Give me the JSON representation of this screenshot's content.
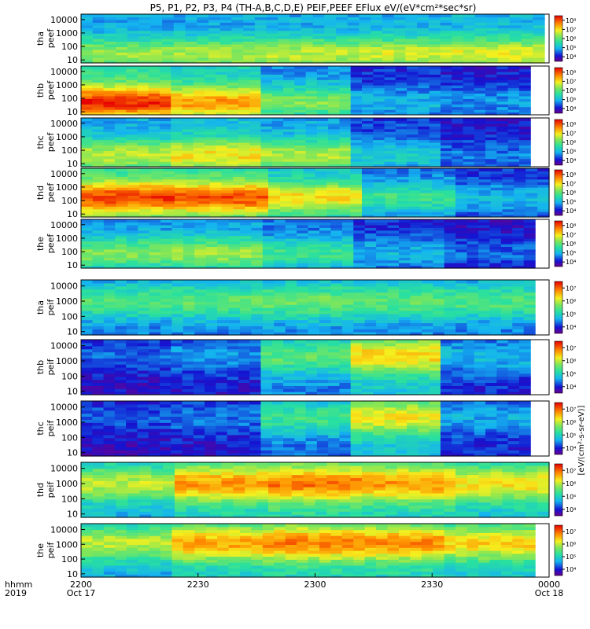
{
  "chart_data": {
    "type": "heatmap",
    "title": "P5, P1, P2, P3, P4 (TH-A,B,C,D,E) PEIF,PEEF EFlux eV/(eV*cm²*sec*sr)",
    "x_ticks": [
      "2200",
      "2230",
      "2300",
      "2330",
      "0000"
    ],
    "x_dates": [
      "Oct 17",
      "Oct 18"
    ],
    "x_axis_label": "hhmm",
    "x_year": "2019",
    "y_ticks": [
      "10",
      "100",
      "1000",
      "10000"
    ],
    "y_scale": "log",
    "ylim": [
      6,
      25000
    ],
    "colorbar_ticks_eflux": [
      "10⁴",
      "10⁵",
      "10⁶",
      "10⁷",
      "10⁸"
    ],
    "colorbar_label": "[eV/(cm²-s-sr-eV)]",
    "panels": [
      {
        "probe": "tha",
        "product": "peef",
        "label_top": "tha",
        "label_bottom": "peef",
        "colorbar_ticks": [
          "10⁴",
          "10⁵",
          "10⁶",
          "10⁷",
          "10⁸"
        ],
        "data_end_fraction": 0.99,
        "base": [
          0.58,
          0.6,
          0.62,
          0.64,
          0.66
        ],
        "peak_energy_level": 0.7
      },
      {
        "probe": "thb",
        "product": "peef",
        "label_top": "thb",
        "label_bottom": "peef",
        "colorbar_ticks": [
          "10⁴",
          "10⁵",
          "10⁶",
          "10⁷",
          "10⁸"
        ],
        "data_end_fraction": 0.96,
        "base": [
          0.95,
          0.8,
          0.55,
          0.3,
          0.25
        ],
        "peak_energy_level": 1.0
      },
      {
        "probe": "thc",
        "product": "peef",
        "label_top": "thc",
        "label_bottom": "peef",
        "colorbar_ticks": [
          "10⁴",
          "10⁵",
          "10⁶",
          "10⁷",
          "10⁸"
        ],
        "data_end_fraction": 0.96,
        "base": [
          0.62,
          0.7,
          0.6,
          0.35,
          0.22
        ],
        "peak_energy_level": 0.9
      },
      {
        "probe": "thd",
        "product": "peef",
        "label_top": "thd",
        "label_bottom": "peef",
        "colorbar_ticks": [
          "10⁴",
          "10⁵",
          "10⁶",
          "10⁷",
          "10⁸"
        ],
        "data_end_fraction": 1.0,
        "base": [
          0.92,
          0.9,
          0.7,
          0.45,
          0.3
        ],
        "peak_energy_level": 1.6
      },
      {
        "probe": "the",
        "product": "peef",
        "label_top": "the",
        "label_bottom": "peef",
        "colorbar_ticks": [
          "10⁴",
          "10⁵",
          "10⁶",
          "10⁷",
          "10⁸"
        ],
        "data_end_fraction": 0.97,
        "base": [
          0.55,
          0.58,
          0.45,
          0.3,
          0.2
        ],
        "peak_energy_level": 1.2
      },
      {
        "probe": "tha",
        "product": "peif",
        "label_top": "tha",
        "label_bottom": "peif",
        "colorbar_ticks": [
          "10⁴",
          "10⁵",
          "10⁶",
          "10⁷"
        ],
        "data_end_fraction": 0.97,
        "base": [
          0.48,
          0.5,
          0.52,
          0.5,
          0.48
        ],
        "peak_energy_level": 2.5
      },
      {
        "probe": "thb",
        "product": "peif",
        "label_top": "thb",
        "label_bottom": "peif",
        "colorbar_ticks": [
          "10⁴",
          "10⁵",
          "10⁶",
          "10⁷"
        ],
        "data_end_fraction": 0.96,
        "base": [
          0.2,
          0.25,
          0.5,
          0.72,
          0.3
        ],
        "peak_energy_level": 2.9
      },
      {
        "probe": "thc",
        "product": "peif",
        "label_top": "thc",
        "label_bottom": "peif",
        "colorbar_ticks": [
          "10⁴",
          "10⁵",
          "10⁶",
          "10⁷"
        ],
        "data_end_fraction": 0.96,
        "base": [
          0.18,
          0.22,
          0.45,
          0.68,
          0.28
        ],
        "peak_energy_level": 2.9
      },
      {
        "probe": "thd",
        "product": "peif",
        "label_top": "thd",
        "label_bottom": "peif",
        "colorbar_ticks": [
          "10⁴",
          "10⁵",
          "10⁶",
          "10⁷"
        ],
        "data_end_fraction": 1.0,
        "base": [
          0.62,
          0.8,
          0.85,
          0.8,
          0.7
        ],
        "peak_energy_level": 2.5
      },
      {
        "probe": "the",
        "product": "peif",
        "label_top": "the",
        "label_bottom": "peif",
        "colorbar_ticks": [
          "10⁴",
          "10⁵",
          "10⁶",
          "10⁷"
        ],
        "data_end_fraction": 0.97,
        "base": [
          0.62,
          0.78,
          0.84,
          0.82,
          0.72
        ],
        "peak_energy_level": 2.6
      }
    ]
  }
}
